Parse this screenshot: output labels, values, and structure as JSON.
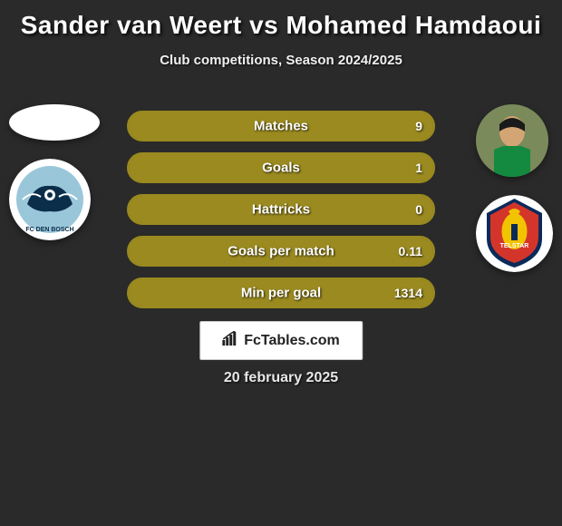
{
  "title": "Sander van Weert vs Mohamed Hamdaoui",
  "subtitle": "Club competitions, Season 2024/2025",
  "date": "20 february 2025",
  "watermark": "FcTables.com",
  "colors": {
    "bar_border": "#9a8a1f",
    "bar_fill_base": "#7a6e18",
    "bar_fill_right": "#9a8a1f",
    "background": "#2a2a2a"
  },
  "bars": [
    {
      "label": "Matches",
      "right_value": "9",
      "right_pct": 100
    },
    {
      "label": "Goals",
      "right_value": "1",
      "right_pct": 100
    },
    {
      "label": "Hattricks",
      "right_value": "0",
      "right_pct": 100
    },
    {
      "label": "Goals per match",
      "right_value": "0.11",
      "right_pct": 100
    },
    {
      "label": "Min per goal",
      "right_value": "1314",
      "right_pct": 100
    }
  ],
  "player_left": {
    "club_colors": {
      "primary": "#9ac6da",
      "secondary": "#0b2f4a",
      "accent": "#ffffff"
    }
  },
  "player_right": {
    "jersey": "#138a3f",
    "club_colors": {
      "primary": "#f2c400",
      "secondary": "#d4352a",
      "accent": "#0a2a5a"
    }
  }
}
